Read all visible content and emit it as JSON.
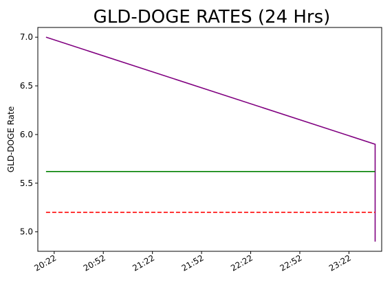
{
  "chart_data": {
    "type": "line",
    "title": "GLD-DOGE RATES (24 Hrs)",
    "xlabel": "",
    "ylabel": "GLD-DOGE Rate",
    "x_ticks": [
      "20:22",
      "20:52",
      "21:22",
      "21:52",
      "22:22",
      "22:52",
      "23:22"
    ],
    "x_range": [
      "20:12",
      "23:42"
    ],
    "ylim": [
      4.8,
      7.1
    ],
    "y_ticks": [
      "5.0",
      "5.5",
      "6.0",
      "6.5",
      "7.0"
    ],
    "grid": false,
    "series": [
      {
        "style": "solid",
        "color": "#800080",
        "points": [
          [
            "20:17",
            7.0
          ],
          [
            "23:38",
            5.9
          ],
          [
            "23:38",
            4.9
          ]
        ]
      },
      {
        "style": "solid",
        "color": "#008000",
        "points": [
          [
            "20:17",
            5.62
          ],
          [
            "23:38",
            5.62
          ]
        ]
      },
      {
        "style": "dashed",
        "color": "#ff0000",
        "points": [
          [
            "20:17",
            5.2
          ],
          [
            "23:38",
            5.2
          ]
        ]
      }
    ]
  }
}
